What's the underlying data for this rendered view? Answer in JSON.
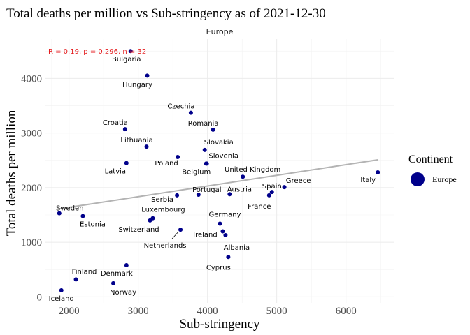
{
  "chart_data": {
    "type": "scatter",
    "title": "Total deaths per million vs Sub-stringency as of 2021-12-30",
    "facet_label": "Europe",
    "xlabel": "Sub-stringency",
    "ylabel": "Total deaths per million",
    "xlim": [
      1650,
      6700
    ],
    "ylim": [
      -110,
      4720
    ],
    "x_ticks": [
      2000,
      3000,
      4000,
      5000,
      6000
    ],
    "y_ticks": [
      0,
      1000,
      2000,
      3000,
      4000
    ],
    "grid": true,
    "stat_text": "R = 0.19, p = 0.296, n = 32",
    "stat_color": "#e41a1c",
    "point_color": "#00008b",
    "trend_color": "#b3b3b3",
    "trend_line": {
      "x": [
        1850,
        6460
      ],
      "y": [
        1610,
        2510
      ]
    },
    "legend": {
      "title": "Continent",
      "entries": [
        "Europe"
      ],
      "position": "right"
    },
    "points": [
      {
        "name": "Bulgaria",
        "x": 2890,
        "y": 4500
      },
      {
        "name": "Hungary",
        "x": 3130,
        "y": 4050
      },
      {
        "name": "Czechia",
        "x": 3760,
        "y": 3370
      },
      {
        "name": "Croatia",
        "x": 2810,
        "y": 3070
      },
      {
        "name": "Romania",
        "x": 4080,
        "y": 3060
      },
      {
        "name": "Lithuania",
        "x": 3120,
        "y": 2750
      },
      {
        "name": "Slovakia",
        "x": 3960,
        "y": 2690
      },
      {
        "name": "Poland",
        "x": 3570,
        "y": 2560
      },
      {
        "name": "Slovenia",
        "x": 3990,
        "y": 2440
      },
      {
        "name": "Latvia",
        "x": 2830,
        "y": 2450
      },
      {
        "name": "Belgium",
        "x": 3980,
        "y": 2440
      },
      {
        "name": "United Kingdom",
        "x": 4510,
        "y": 2200
      },
      {
        "name": "Italy",
        "x": 6460,
        "y": 2280
      },
      {
        "name": "Greece",
        "x": 5110,
        "y": 2010
      },
      {
        "name": "Spain",
        "x": 4930,
        "y": 1920
      },
      {
        "name": "France",
        "x": 4890,
        "y": 1860
      },
      {
        "name": "Austria",
        "x": 4320,
        "y": 1880
      },
      {
        "name": "Portugal",
        "x": 3870,
        "y": 1870
      },
      {
        "name": "Serbia",
        "x": 3560,
        "y": 1860
      },
      {
        "name": "Sweden",
        "x": 1860,
        "y": 1530
      },
      {
        "name": "Estonia",
        "x": 2200,
        "y": 1480
      },
      {
        "name": "Luxembourg",
        "x": 3210,
        "y": 1440
      },
      {
        "name": "Switzerland",
        "x": 3170,
        "y": 1400
      },
      {
        "name": "Germany",
        "x": 4180,
        "y": 1340
      },
      {
        "name": "Netherlands",
        "x": 3610,
        "y": 1230
      },
      {
        "name": "Ireland",
        "x": 4220,
        "y": 1200
      },
      {
        "name": "Albania",
        "x": 4260,
        "y": 1130
      },
      {
        "name": "Cyprus",
        "x": 4300,
        "y": 730
      },
      {
        "name": "Denmark",
        "x": 2830,
        "y": 580
      },
      {
        "name": "Finland",
        "x": 2100,
        "y": 320
      },
      {
        "name": "Norway",
        "x": 2640,
        "y": 250
      },
      {
        "name": "Iceland",
        "x": 1890,
        "y": 120
      }
    ]
  }
}
